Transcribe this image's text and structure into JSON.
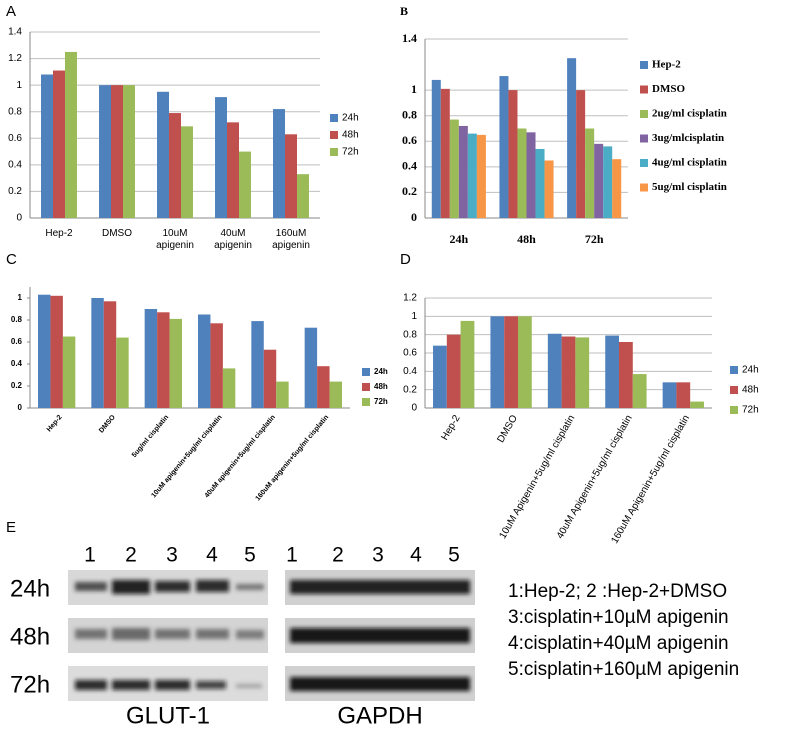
{
  "chart_data": [
    {
      "type": "bar",
      "panel": "A",
      "categories": [
        "Hep-2",
        "DMSO",
        "10uM apigenin",
        "40uM apigenin",
        "160uM apigenin"
      ],
      "series": [
        {
          "name": "24h",
          "color": "#4f81bd",
          "values": [
            1.08,
            1.0,
            0.95,
            0.91,
            0.82
          ]
        },
        {
          "name": "48h",
          "color": "#c0504d",
          "values": [
            1.11,
            1.0,
            0.79,
            0.72,
            0.63
          ]
        },
        {
          "name": "72h",
          "color": "#9bbb59",
          "values": [
            1.25,
            1.0,
            0.69,
            0.5,
            0.33
          ]
        }
      ],
      "ylim": [
        0,
        1.4
      ],
      "yticks": [
        0,
        0.2,
        0.4,
        0.6,
        0.8,
        1,
        1.2,
        1.4
      ],
      "grid": true
    },
    {
      "type": "bar",
      "panel": "B",
      "categories": [
        "24h",
        "48h",
        "72h"
      ],
      "series": [
        {
          "name": "Hep-2",
          "color": "#4f81bd",
          "values": [
            1.08,
            1.11,
            1.25
          ]
        },
        {
          "name": "DMSO",
          "color": "#c0504d",
          "values": [
            1.01,
            1.0,
            1.0
          ]
        },
        {
          "name": "2ug/ml cisplatin",
          "color": "#9bbb59",
          "values": [
            0.77,
            0.7,
            0.7
          ]
        },
        {
          "name": "3ug/mlcisplatin",
          "color": "#8064a2",
          "values": [
            0.72,
            0.67,
            0.58
          ]
        },
        {
          "name": "4ug/ml cisplatin",
          "color": "#4bacc6",
          "values": [
            0.66,
            0.54,
            0.56
          ]
        },
        {
          "name": "5ug/ml cisplatin",
          "color": "#f79646",
          "values": [
            0.65,
            0.45,
            0.46
          ]
        }
      ],
      "ylim": [
        0,
        1.4
      ],
      "yticks": [
        0,
        0.2,
        0.4,
        0.6,
        0.8,
        1,
        1.4
      ],
      "grid": true
    },
    {
      "type": "bar",
      "panel": "C",
      "categories": [
        "Hep-2",
        "DMSO",
        "5ug/ml cisplatin",
        "10uM apigenin+5ug/ml cisplatin",
        "40uM apigenin+5ug/ml cisplatin",
        "160uM apigenin+5ug/ml cisplatin"
      ],
      "series": [
        {
          "name": "24h",
          "color": "#4f81bd",
          "values": [
            1.03,
            1.0,
            0.9,
            0.85,
            0.79,
            0.73
          ]
        },
        {
          "name": "48h",
          "color": "#c0504d",
          "values": [
            1.02,
            0.97,
            0.87,
            0.77,
            0.53,
            0.38
          ]
        },
        {
          "name": "72h",
          "color": "#9bbb59",
          "values": [
            0.65,
            0.64,
            0.81,
            0.36,
            0.24,
            0.24
          ]
        }
      ],
      "ylim": [
        0,
        1.1
      ],
      "yticks": [
        0,
        0.2,
        0.4,
        0.6,
        0.8,
        1
      ],
      "grid": false
    },
    {
      "type": "bar",
      "panel": "D",
      "categories": [
        "Hep-2",
        "DMSO",
        "10uM Apigenin+5ug/ml cisplatin",
        "40uM Apigenin+5ug/ml cisplatin",
        "160uM Apigenin+5ug/ml cisplatin"
      ],
      "series": [
        {
          "name": "24h",
          "color": "#4f81bd",
          "values": [
            0.68,
            1.0,
            0.81,
            0.79,
            0.28
          ]
        },
        {
          "name": "48h",
          "color": "#c0504d",
          "values": [
            0.8,
            1.0,
            0.78,
            0.72,
            0.28
          ]
        },
        {
          "name": "72h",
          "color": "#9bbb59",
          "values": [
            0.95,
            1.0,
            0.77,
            0.37,
            0.07
          ]
        }
      ],
      "ylim": [
        0,
        1.2
      ],
      "yticks": [
        0,
        0.2,
        0.4,
        0.6,
        0.8,
        1,
        1.2
      ],
      "grid": true
    }
  ],
  "blot": {
    "panel": "E",
    "lanes": [
      "1",
      "2",
      "3",
      "4",
      "5"
    ],
    "rows": [
      "24h",
      "48h",
      "72h"
    ],
    "proteins": [
      "GLUT-1",
      "GAPDH"
    ],
    "legend": [
      "1:Hep-2; 2 :Hep-2+DMSO",
      "3:cisplatin+10µM apigenin",
      "4:cisplatin+40µM apigenin",
      "5:cisplatin+160µM apigenin"
    ]
  }
}
